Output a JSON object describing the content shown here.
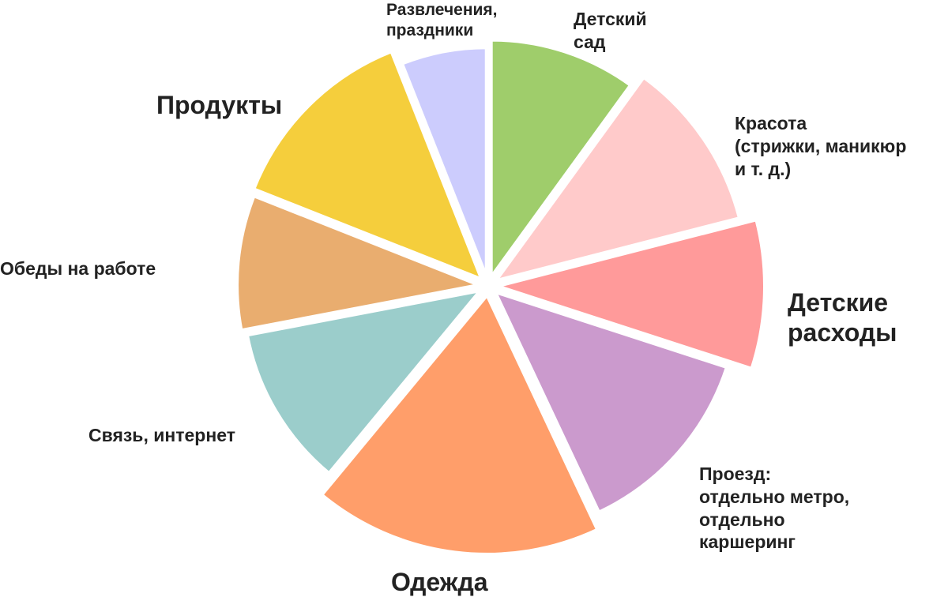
{
  "chart_data": {
    "type": "pie",
    "exploded": true,
    "start": "12 o'clock",
    "direction": "clockwise",
    "slices": [
      {
        "label": "Детский\nсад",
        "value": 10,
        "color": "#9FCD6B"
      },
      {
        "label": "Красота\n(стрижки, маникюр\nи т. д.)",
        "value": 11,
        "color": "#FFCACA"
      },
      {
        "label": "Детские\nрасходы",
        "value": 9,
        "color": "#FF9A9A"
      },
      {
        "label": "Проезд:\nотдельно метро,\nотдельно\nкаршеринг",
        "value": 13,
        "color": "#CB9ACD"
      },
      {
        "label": "Одежда",
        "value": 18,
        "color": "#FF9E6A"
      },
      {
        "label": "Связь, интернет",
        "value": 11,
        "color": "#9BCDCB"
      },
      {
        "label": "Обеды на работе",
        "value": 9,
        "color": "#E9AD6F"
      },
      {
        "label": "Продукты",
        "value": 13,
        "color": "#F5CE3C"
      },
      {
        "label": "Развлечения,\nпраздники",
        "value": 6,
        "color": "#CCCCFD"
      }
    ]
  }
}
